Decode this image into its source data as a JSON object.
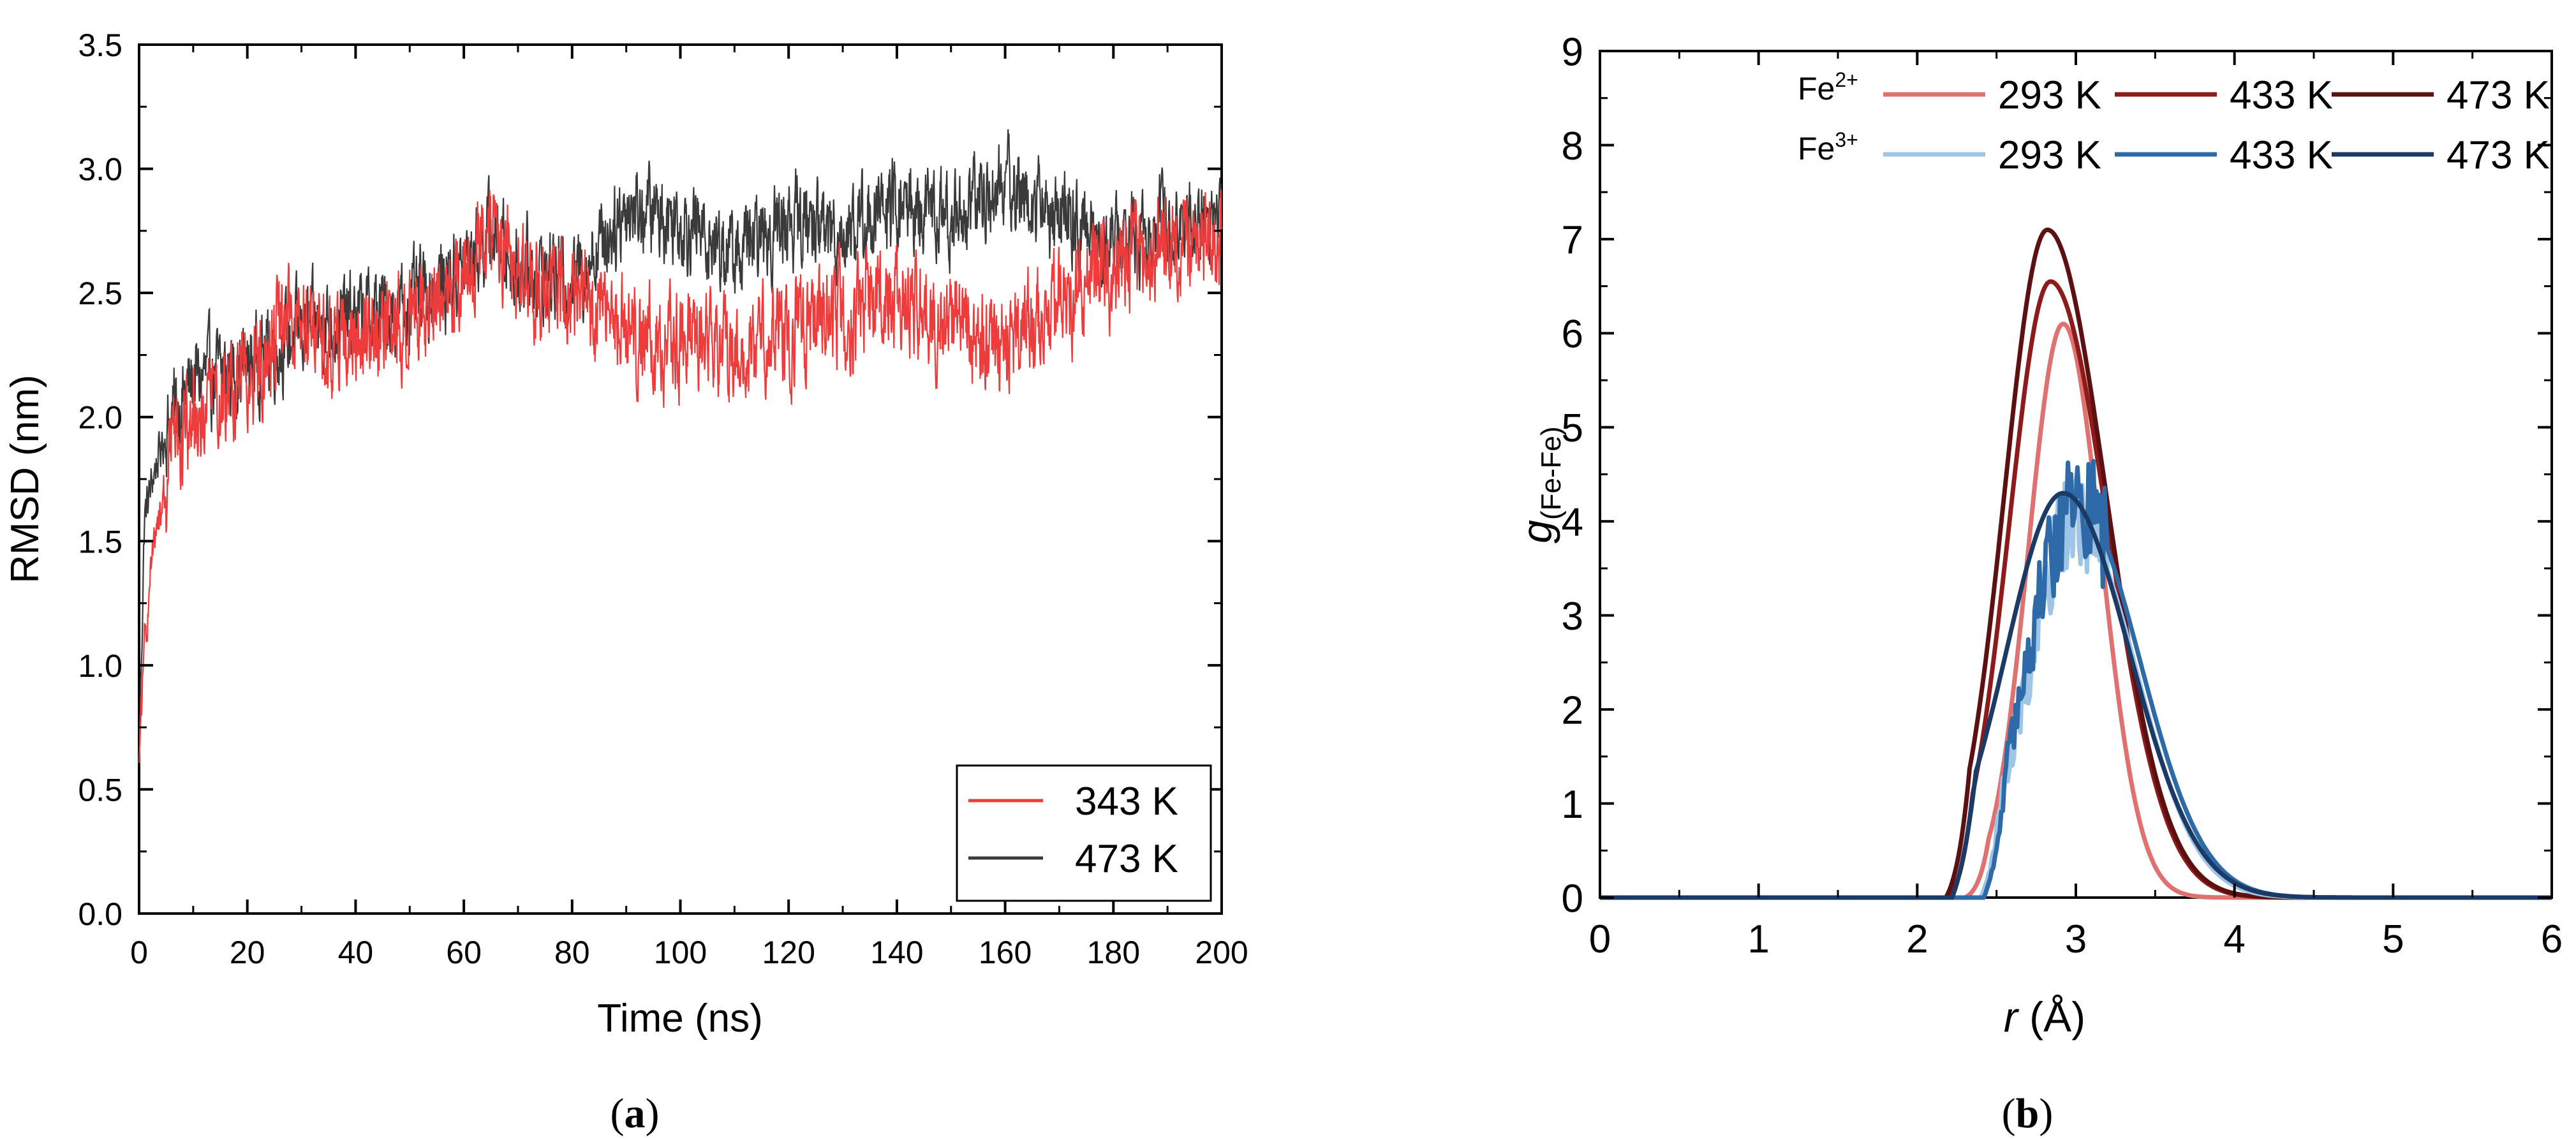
{
  "chart_data": [
    {
      "type": "line",
      "panel_label": "a",
      "title": "",
      "xlabel": "Time (ns)",
      "ylabel": "RMSD (nm)",
      "xlim": [
        0,
        200
      ],
      "ylim": [
        0,
        3.5
      ],
      "xticks": [
        0,
        20,
        40,
        60,
        80,
        100,
        120,
        140,
        160,
        180,
        200
      ],
      "yticks": [
        0.0,
        0.5,
        1.0,
        1.5,
        2.0,
        2.5,
        3.0,
        3.5
      ],
      "xtick_labels": [
        "0",
        "20",
        "40",
        "60",
        "80",
        "100",
        "120",
        "140",
        "160",
        "180",
        "200"
      ],
      "ytick_labels": [
        "0.0",
        "0.5",
        "1.0",
        "1.5",
        "2.0",
        "2.5",
        "3.0",
        "3.5"
      ],
      "legend_position": "bottom-right",
      "series": [
        {
          "name": "473 K",
          "color": "#3a3a3a",
          "noise": 0.14,
          "trend_x": [
            0,
            1,
            3,
            6,
            10,
            20,
            30,
            40,
            50,
            60,
            65,
            70,
            80,
            90,
            100,
            110,
            120,
            130,
            140,
            150,
            160,
            170,
            180,
            190,
            200
          ],
          "trend_y": [
            0.6,
            1.6,
            1.8,
            2.0,
            2.15,
            2.2,
            2.35,
            2.4,
            2.45,
            2.6,
            2.75,
            2.6,
            2.55,
            2.85,
            2.8,
            2.65,
            2.8,
            2.75,
            2.85,
            2.8,
            2.95,
            2.8,
            2.7,
            2.8,
            2.8
          ]
        },
        {
          "name": "343 K",
          "color": "#ee3b3b",
          "noise": 0.16,
          "trend_x": [
            0,
            1,
            3,
            6,
            10,
            20,
            28,
            35,
            45,
            55,
            60,
            65,
            70,
            80,
            90,
            100,
            110,
            120,
            130,
            140,
            150,
            160,
            170,
            180,
            190,
            200
          ],
          "trend_y": [
            0.6,
            1.1,
            1.5,
            1.85,
            2.0,
            2.15,
            2.45,
            2.3,
            2.35,
            2.5,
            2.6,
            2.75,
            2.6,
            2.45,
            2.35,
            2.3,
            2.25,
            2.35,
            2.4,
            2.45,
            2.35,
            2.3,
            2.45,
            2.6,
            2.7,
            2.75
          ]
        }
      ]
    },
    {
      "type": "line",
      "panel_label": "b",
      "title": "",
      "xlabel_var": "r",
      "xlabel_unit": "(Å)",
      "ylabel_var": "g",
      "ylabel_sub": "(Fe-Fe)",
      "xlim": [
        0,
        6
      ],
      "ylim": [
        0,
        9
      ],
      "xticks": [
        0,
        1,
        2,
        3,
        4,
        5,
        6
      ],
      "yticks": [
        0,
        1,
        2,
        3,
        4,
        5,
        6,
        7,
        8,
        9
      ],
      "xtick_labels": [
        "0",
        "1",
        "2",
        "3",
        "4",
        "5",
        "6"
      ],
      "ytick_labels": [
        "0",
        "1",
        "2",
        "3",
        "4",
        "5",
        "6",
        "7",
        "8",
        "9"
      ],
      "legend_position": "top-right",
      "legend_rows": [
        {
          "ion": "Fe",
          "charge": "2+"
        },
        {
          "ion": "Fe",
          "charge": "3+"
        }
      ],
      "series": [
        {
          "name": "Fe2+ 293 K",
          "row": 0,
          "legend_label": "293 K",
          "color": "#e07171",
          "peak_r": 2.92,
          "peak_g": 6.1,
          "width_left": 0.22,
          "width_right": 0.24,
          "start_r": 2.3,
          "jagged": false
        },
        {
          "name": "Fe2+ 433 K",
          "row": 0,
          "legend_label": "433 K",
          "color": "#8e1b1b",
          "peak_r": 2.84,
          "peak_g": 6.55,
          "width_left": 0.26,
          "width_right": 0.36,
          "start_r": 2.2,
          "jagged": false
        },
        {
          "name": "Fe2+ 473 K",
          "row": 0,
          "legend_label": "473 K",
          "color": "#5c1010",
          "peak_r": 2.82,
          "peak_g": 7.1,
          "width_left": 0.27,
          "width_right": 0.37,
          "start_r": 2.18,
          "jagged": false
        },
        {
          "name": "Fe3+ 293 K",
          "row": 1,
          "legend_label": "293 K",
          "color": "#9ec4e6",
          "peak_r": 3.0,
          "peak_g": 4.0,
          "width_left": 0.3,
          "width_right": 0.38,
          "start_r": 2.4,
          "jagged": true
        },
        {
          "name": "Fe3+ 433 K",
          "row": 1,
          "legend_label": "433 K",
          "color": "#2e6aa8",
          "peak_r": 3.0,
          "peak_g": 4.2,
          "width_left": 0.3,
          "width_right": 0.4,
          "start_r": 2.42,
          "jagged": true
        },
        {
          "name": "Fe3+ 473 K",
          "row": 1,
          "legend_label": "473 K",
          "color": "#1b3a66",
          "peak_r": 2.92,
          "peak_g": 4.3,
          "width_left": 0.36,
          "width_right": 0.42,
          "start_r": 2.22,
          "jagged": false
        }
      ]
    }
  ]
}
